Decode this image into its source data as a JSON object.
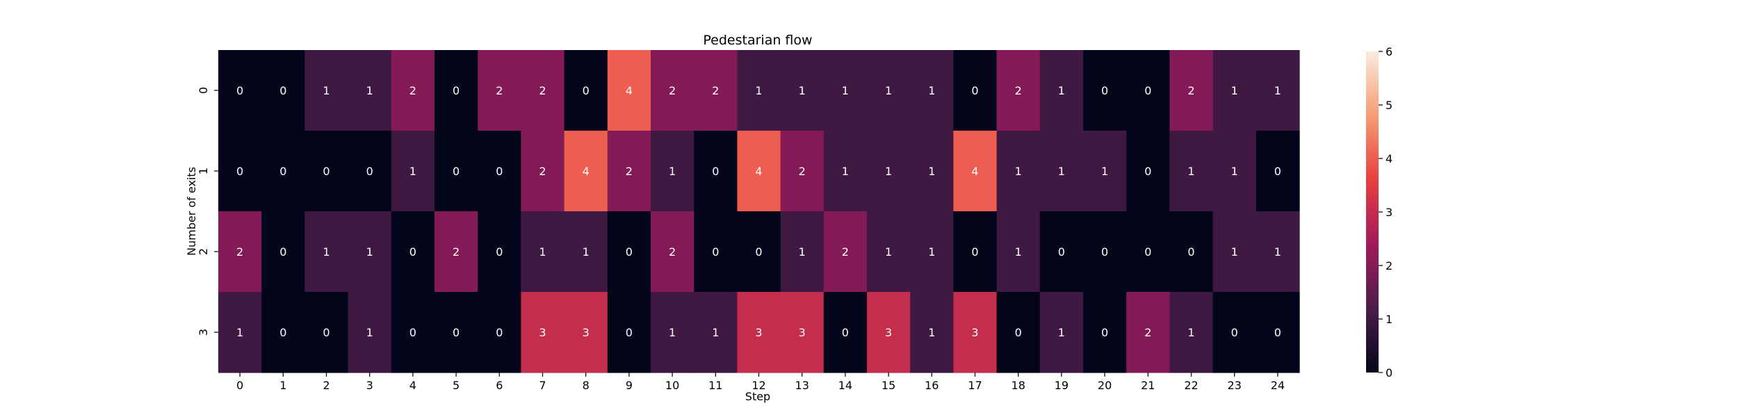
{
  "chart_data": {
    "type": "heatmap",
    "title": "Pedestarian flow",
    "xlabel": "Step",
    "ylabel": "Number of exits",
    "x_categories": [
      "0",
      "1",
      "2",
      "3",
      "4",
      "5",
      "6",
      "7",
      "8",
      "9",
      "10",
      "11",
      "12",
      "13",
      "14",
      "15",
      "16",
      "17",
      "18",
      "19",
      "20",
      "21",
      "22",
      "23",
      "24"
    ],
    "y_categories": [
      "0",
      "1",
      "2",
      "3"
    ],
    "values": [
      [
        0,
        0,
        1,
        1,
        2,
        0,
        2,
        2,
        0,
        4,
        2,
        2,
        1,
        1,
        1,
        1,
        1,
        0,
        2,
        1,
        0,
        0,
        2,
        1,
        1
      ],
      [
        0,
        0,
        0,
        0,
        1,
        0,
        0,
        2,
        4,
        2,
        1,
        0,
        4,
        2,
        1,
        1,
        1,
        4,
        1,
        1,
        1,
        0,
        1,
        1,
        0
      ],
      [
        2,
        0,
        1,
        1,
        0,
        2,
        0,
        1,
        1,
        0,
        2,
        0,
        0,
        1,
        2,
        1,
        1,
        0,
        1,
        0,
        0,
        0,
        0,
        1,
        1
      ],
      [
        1,
        0,
        0,
        1,
        0,
        0,
        0,
        3,
        3,
        0,
        1,
        1,
        3,
        3,
        0,
        3,
        1,
        3,
        0,
        1,
        0,
        2,
        1,
        0,
        0
      ]
    ],
    "colorbar": {
      "range": [
        0,
        6
      ],
      "ticks": [
        "0",
        "1",
        "2",
        "3",
        "4",
        "5",
        "6"
      ],
      "colormap": "rocket",
      "stops": [
        "#03051a",
        "#4c1d4b",
        "#a11a5b",
        "#e83f3f",
        "#f69c73",
        "#faebdd"
      ]
    },
    "grid": false,
    "annotations": true
  }
}
